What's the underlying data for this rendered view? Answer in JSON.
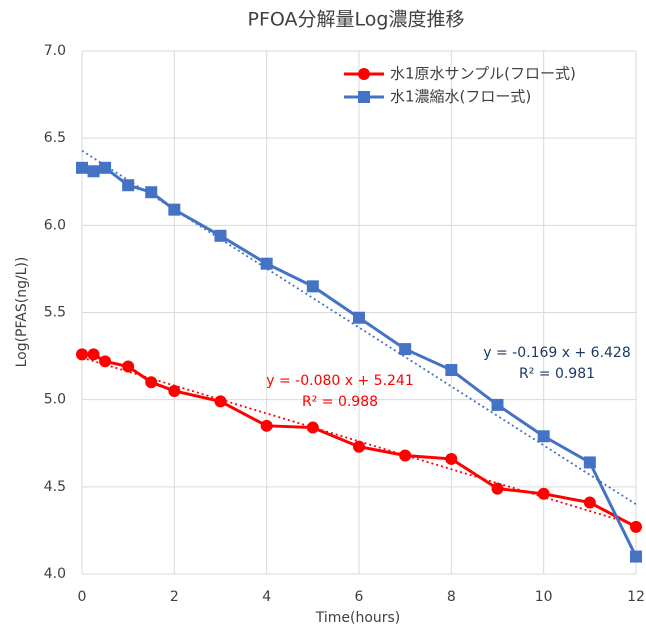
{
  "chart_data": {
    "type": "line",
    "title": "PFOA分解量Log濃度推移",
    "x_label": "Time(hours)",
    "y_label": "Log(PFAS(ng/L))",
    "x": [
      0,
      0.25,
      0.5,
      1,
      1.5,
      2,
      3,
      4,
      5,
      6,
      7,
      8,
      9,
      10,
      11,
      12
    ],
    "series": [
      {
        "name": "水1原水サンプル(フロー式)",
        "color": "#ff0000",
        "marker": "circle",
        "values": [
          5.26,
          5.26,
          5.22,
          5.19,
          5.1,
          5.05,
          4.99,
          4.85,
          4.84,
          4.73,
          4.68,
          4.66,
          4.49,
          4.46,
          4.41,
          4.27
        ],
        "trendline": {
          "slope": -0.08,
          "intercept": 5.241,
          "equation": "y = -0.080 x + 5.241",
          "r2": "R² = 0.988",
          "label_color": "#ff0000"
        }
      },
      {
        "name": "水1濃縮水(フロー式)",
        "color": "#4472c4",
        "marker": "square",
        "values": [
          6.33,
          6.31,
          6.33,
          6.23,
          6.19,
          6.09,
          5.94,
          5.78,
          5.65,
          5.47,
          5.29,
          5.17,
          4.97,
          4.79,
          4.64,
          4.1
        ],
        "trendline": {
          "slope": -0.169,
          "intercept": 6.428,
          "equation": "y = -0.169 x + 6.428",
          "r2": "R² = 0.981",
          "label_color": "#1f3864"
        }
      }
    ],
    "xlim": [
      0,
      12
    ],
    "xticks": [
      0,
      2,
      4,
      6,
      8,
      10,
      12
    ],
    "ylim": [
      4.0,
      7.0
    ],
    "yticks": [
      {
        "value": 4.0,
        "label": "4.0"
      },
      4.5,
      {
        "value": 5.0,
        "label": "5.0"
      },
      5.5,
      {
        "value": 6.0,
        "label": "6.0"
      },
      6.5,
      {
        "value": 7.0,
        "label": "7.0"
      }
    ],
    "grid": true,
    "legend": "top-right"
  }
}
